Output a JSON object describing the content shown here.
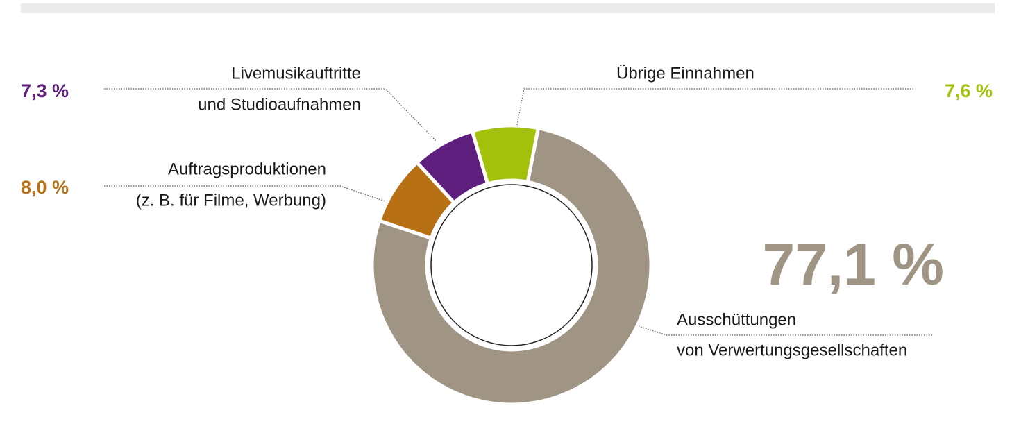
{
  "chart_data": {
    "type": "donut",
    "categories": [
      [
        "Ausschüttungen",
        "von Verwertungsgesellschaften"
      ],
      [
        "Auftragsproduktionen",
        "(z. B. für Filme, Werbung)"
      ],
      [
        "Livemusikauftritte",
        "und Studioaufnahmen"
      ],
      [
        "Übrige Einnahmen"
      ]
    ],
    "values": [
      77.1,
      8.0,
      7.3,
      7.6
    ],
    "value_labels": [
      "77,1 %",
      "8,0 %",
      "7,3 %",
      "7,6 %"
    ],
    "colors": [
      "#a09484",
      "#b87015",
      "#5f1f7e",
      "#a3c10a"
    ]
  }
}
